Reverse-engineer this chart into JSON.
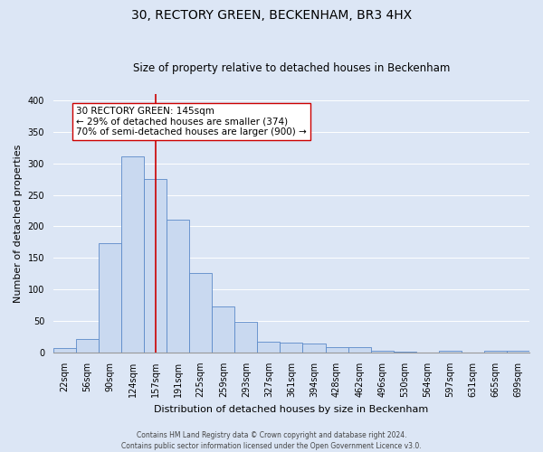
{
  "title": "30, RECTORY GREEN, BECKENHAM, BR3 4HX",
  "subtitle": "Size of property relative to detached houses in Beckenham",
  "xlabel": "Distribution of detached houses by size in Beckenham",
  "ylabel": "Number of detached properties",
  "bar_labels": [
    "22sqm",
    "56sqm",
    "90sqm",
    "124sqm",
    "157sqm",
    "191sqm",
    "225sqm",
    "259sqm",
    "293sqm",
    "327sqm",
    "361sqm",
    "394sqm",
    "428sqm",
    "462sqm",
    "496sqm",
    "530sqm",
    "564sqm",
    "597sqm",
    "631sqm",
    "665sqm",
    "699sqm"
  ],
  "bar_values": [
    7,
    22,
    173,
    311,
    275,
    210,
    126,
    73,
    48,
    17,
    16,
    14,
    9,
    9,
    3,
    2,
    0,
    3,
    0,
    3,
    3
  ],
  "bar_color": "#c9d9f0",
  "bar_edgecolor": "#5b8ac9",
  "vline_x": 4,
  "vline_color": "#cc0000",
  "ylim": [
    0,
    410
  ],
  "yticks": [
    0,
    50,
    100,
    150,
    200,
    250,
    300,
    350,
    400
  ],
  "annotation_text": "30 RECTORY GREEN: 145sqm\n← 29% of detached houses are smaller (374)\n70% of semi-detached houses are larger (900) →",
  "annotation_box_edgecolor": "#cc0000",
  "annotation_box_facecolor": "#ffffff",
  "footer_line1": "Contains HM Land Registry data © Crown copyright and database right 2024.",
  "footer_line2": "Contains public sector information licensed under the Open Government Licence v3.0.",
  "background_color": "#dce6f5",
  "plot_background_color": "#dce6f5",
  "title_fontsize": 10,
  "subtitle_fontsize": 8.5,
  "xlabel_fontsize": 8,
  "ylabel_fontsize": 8,
  "tick_fontsize": 7,
  "annotation_fontsize": 7.5,
  "footer_fontsize": 5.5
}
